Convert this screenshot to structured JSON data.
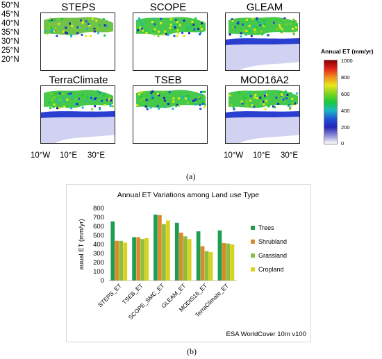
{
  "figure_a": {
    "panels": [
      "STEPS",
      "SCOPE",
      "GLEAM",
      "TerraClimate",
      "TSEB",
      "MOD16A2"
    ],
    "lat_labels": [
      "50°N",
      "45°N",
      "40°N",
      "35°N",
      "30°N",
      "25°N",
      "20°N"
    ],
    "lon_labels": [
      "10°W",
      "10°E",
      "30°E"
    ],
    "colorbar": {
      "title": "Annual ET (mm/yr)",
      "ticks": [
        "1000",
        "800",
        "600",
        "400",
        "200",
        "0"
      ],
      "colors": [
        "#8b0000",
        "#e2221b",
        "#f28c1e",
        "#e8e81a",
        "#7fd321",
        "#18c93a",
        "#1ab8c4",
        "#1f55d6",
        "#2424b8",
        "#8a8ad6",
        "#ffffff"
      ]
    },
    "caption": "(a)"
  },
  "figure_b": {
    "caption": "(b)"
  },
  "chart_data": {
    "type": "bar",
    "title": "Annual ET Variations among Land use Type",
    "ylabel": "auual ET (mm/yr)",
    "xlabel": "ESA WorldCover 10m v100",
    "ylim": [
      0,
      800
    ],
    "yticks": [
      0,
      100,
      200,
      300,
      400,
      500,
      600,
      700,
      800
    ],
    "categories": [
      "STEPS_ET",
      "TSEB_ET",
      "SCOPE_SMC_ET",
      "GLEAM_ET",
      "MODIS16_ET",
      "TerraClimate_ET"
    ],
    "series": [
      {
        "name": "Trees",
        "color": "#1f9e52",
        "values": [
          655,
          480,
          730,
          640,
          545,
          555
        ]
      },
      {
        "name": "Shrubland",
        "color": "#d98b2b",
        "values": [
          440,
          480,
          725,
          530,
          380,
          415
        ]
      },
      {
        "name": "Grassland",
        "color": "#8dbf3f",
        "values": [
          440,
          460,
          625,
          490,
          325,
          410
        ]
      },
      {
        "name": "Cropland",
        "color": "#d9d21e",
        "values": [
          420,
          470,
          665,
          460,
          315,
          400
        ]
      }
    ],
    "legend": "right",
    "grid": false
  }
}
